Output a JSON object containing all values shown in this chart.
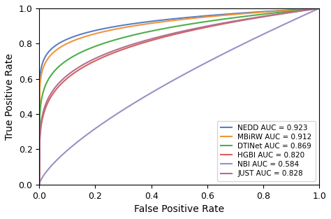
{
  "title": "",
  "xlabel": "False Positive Rate",
  "ylabel": "True Positive Rate",
  "xlim": [
    0.0,
    1.0
  ],
  "ylim": [
    0.0,
    1.0
  ],
  "curves": [
    {
      "label": "NEDD AUC = 0.923",
      "color": "#5A7EC7",
      "auc": 0.923,
      "alpha": 0.08
    },
    {
      "label": "MBiRW AUC = 0.912",
      "color": "#F0943A",
      "auc": 0.912,
      "alpha": 0.092
    },
    {
      "label": "DTINet AUC = 0.869",
      "color": "#4DAF4A",
      "auc": 0.869,
      "alpha": 0.145
    },
    {
      "label": "HGBI AUC = 0.820",
      "color": "#D95F5F",
      "auc": 0.82,
      "alpha": 0.22
    },
    {
      "label": "NBI AUC = 0.584",
      "color": "#9B8FC7",
      "auc": 0.584,
      "alpha": 1.0
    },
    {
      "label": "JUST AUC = 0.828",
      "color": "#B07090",
      "auc": 0.828,
      "alpha": 0.2
    }
  ],
  "xticks": [
    0.0,
    0.2,
    0.4,
    0.6,
    0.8,
    1.0
  ],
  "yticks": [
    0.0,
    0.2,
    0.4,
    0.6,
    0.8,
    1.0
  ],
  "legend_loc": "lower right",
  "figsize": [
    4.74,
    3.13
  ],
  "dpi": 100
}
